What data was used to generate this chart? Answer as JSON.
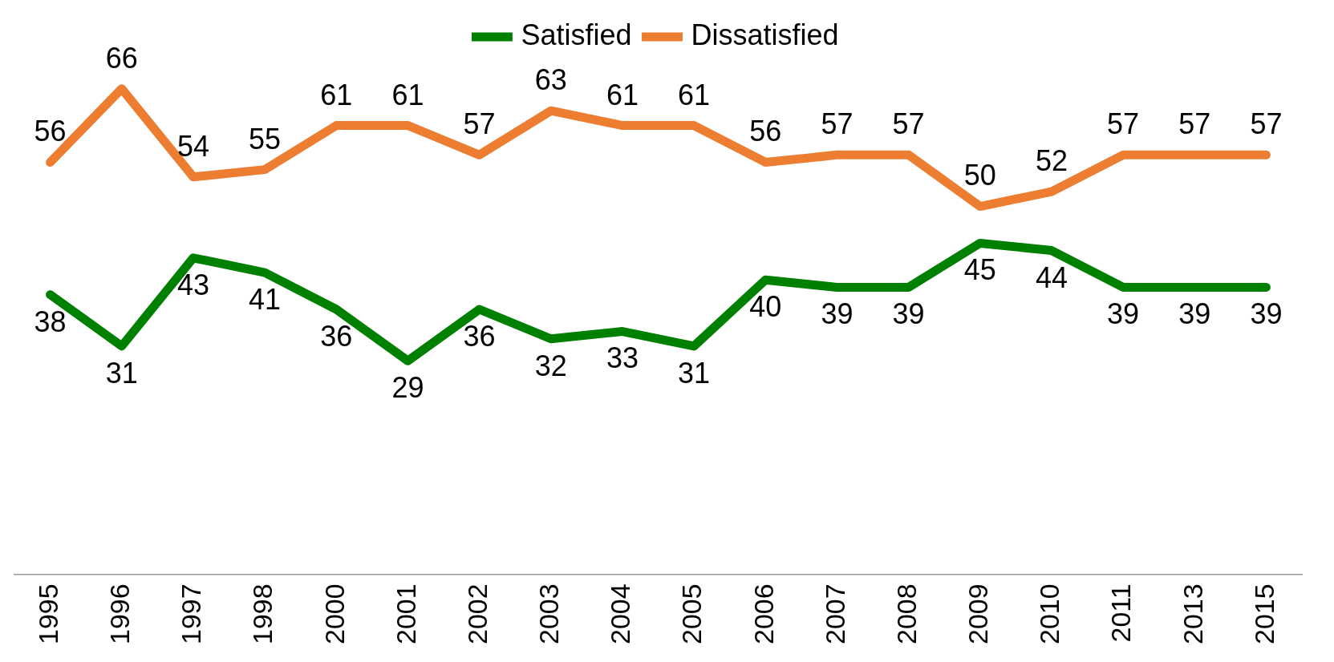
{
  "chart_data": {
    "type": "line",
    "categories": [
      "1995",
      "1996",
      "1997",
      "1998",
      "2000",
      "2001",
      "2002",
      "2003",
      "2004",
      "2005",
      "2006",
      "2007",
      "2008",
      "2009",
      "2010",
      "2011",
      "2013",
      "2015"
    ],
    "series": [
      {
        "name": "Satisfied",
        "color": "#008000",
        "values": [
          38,
          31,
          43,
          41,
          36,
          29,
          36,
          32,
          33,
          31,
          40,
          39,
          39,
          45,
          44,
          39,
          39,
          39
        ]
      },
      {
        "name": "Dissatisfied",
        "color": "#ed7d31",
        "values": [
          56,
          66,
          54,
          55,
          61,
          61,
          57,
          63,
          61,
          61,
          56,
          57,
          57,
          50,
          52,
          57,
          57,
          57
        ]
      }
    ],
    "data_labels": true,
    "legend": "top",
    "grid": false,
    "marker": "none",
    "line_style": "solid",
    "tick_labels": "x"
  }
}
